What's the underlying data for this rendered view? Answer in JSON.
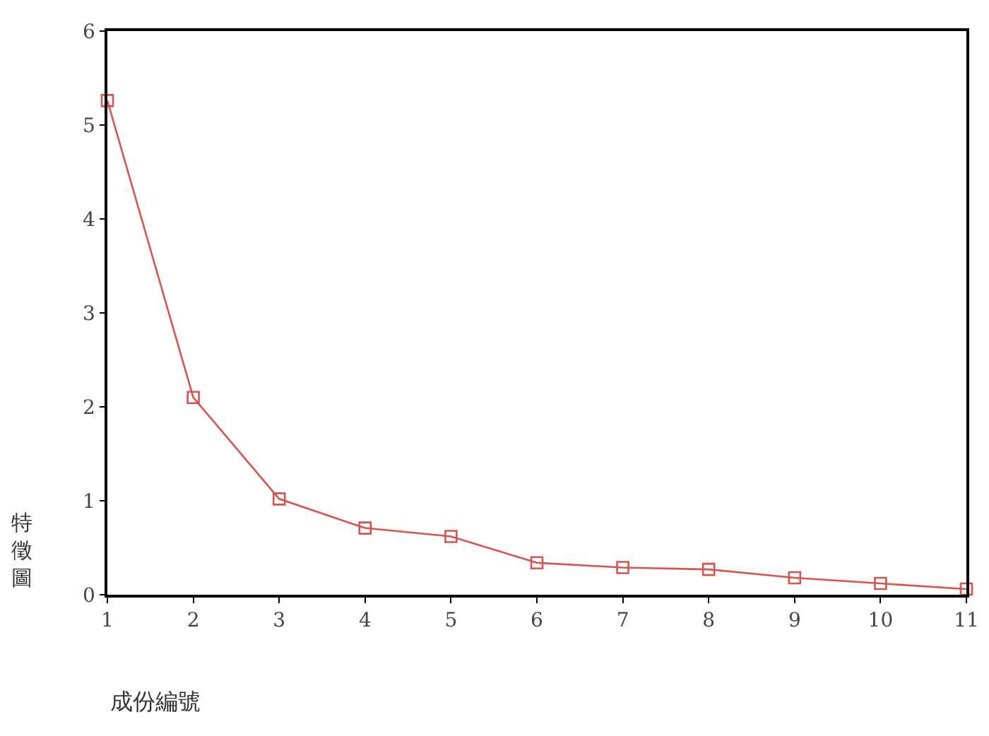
{
  "chart_data": {
    "type": "line",
    "xlabel": "成份編號",
    "ylabel": "特徵圖",
    "x": [
      1,
      2,
      3,
      4,
      5,
      6,
      7,
      8,
      9,
      10,
      11
    ],
    "series": [
      {
        "color": "#d9534f",
        "values": [
          5.26,
          2.1,
          1.02,
          0.71,
          0.62,
          0.34,
          0.29,
          0.27,
          0.18,
          0.12,
          0.06
        ]
      }
    ],
    "xlim": [
      1,
      11
    ],
    "xticks": [
      1,
      2,
      3,
      4,
      5,
      6,
      7,
      8,
      9,
      10,
      11
    ],
    "ylim": [
      0,
      6
    ],
    "yticks": [
      0,
      1,
      2,
      3,
      4,
      5,
      6
    ],
    "marker": "square",
    "line_style": "solid"
  }
}
